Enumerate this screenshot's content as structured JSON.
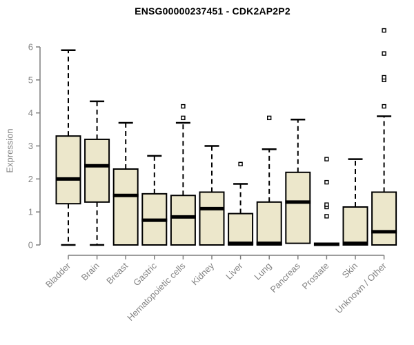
{
  "chart_data": {
    "type": "boxplot",
    "title": "ENSG00000237451 - CDK2AP2P2",
    "ylabel": "Expression",
    "xlabel": "",
    "ylim": [
      0,
      6
    ],
    "yticks": [
      0,
      1,
      2,
      3,
      4,
      5,
      6
    ],
    "grid": false,
    "legend": false,
    "categories": [
      "Bladder",
      "Brain",
      "Breast",
      "Gastric",
      "Hematopoietic cells",
      "Kidney",
      "Liver",
      "Lung",
      "Pancreas",
      "Prostate",
      "Skin",
      "Unknown / Other"
    ],
    "boxes": [
      {
        "label": "Bladder",
        "whislo": 0,
        "q1": 1.25,
        "med": 2.0,
        "q3": 3.3,
        "whishi": 5.9,
        "outliers": []
      },
      {
        "label": "Brain",
        "whislo": 0,
        "q1": 1.3,
        "med": 2.4,
        "q3": 3.2,
        "whishi": 4.35,
        "outliers": []
      },
      {
        "label": "Breast",
        "whislo": 0,
        "q1": 0,
        "med": 1.5,
        "q3": 2.3,
        "whishi": 3.7,
        "outliers": []
      },
      {
        "label": "Gastric",
        "whislo": 0,
        "q1": 0,
        "med": 0.75,
        "q3": 1.55,
        "whishi": 2.7,
        "outliers": []
      },
      {
        "label": "Hematopoietic cells",
        "whislo": 0,
        "q1": 0,
        "med": 0.85,
        "q3": 1.5,
        "whishi": 3.7,
        "outliers": [
          3.85,
          4.2
        ]
      },
      {
        "label": "Kidney",
        "whislo": 0,
        "q1": 0,
        "med": 1.1,
        "q3": 1.6,
        "whishi": 3.0,
        "outliers": []
      },
      {
        "label": "Liver",
        "whislo": 0,
        "q1": 0,
        "med": 0.05,
        "q3": 0.95,
        "whishi": 1.85,
        "outliers": [
          2.45
        ]
      },
      {
        "label": "Lung",
        "whislo": 0,
        "q1": 0,
        "med": 0.05,
        "q3": 1.3,
        "whishi": 2.9,
        "outliers": [
          3.85
        ]
      },
      {
        "label": "Pancreas",
        "whislo": 0.05,
        "q1": 0.05,
        "med": 1.3,
        "q3": 2.2,
        "whishi": 3.8,
        "outliers": []
      },
      {
        "label": "Prostate",
        "whislo": 0,
        "q1": 0,
        "med": 0.02,
        "q3": 0.02,
        "whishi": 0.02,
        "outliers": [
          0.87,
          1.15,
          1.22,
          1.9,
          2.6
        ]
      },
      {
        "label": "Skin",
        "whislo": 0,
        "q1": 0,
        "med": 0.05,
        "q3": 1.15,
        "whishi": 2.6,
        "outliers": []
      },
      {
        "label": "Unknown / Other",
        "whislo": 0,
        "q1": 0,
        "med": 0.4,
        "q3": 1.6,
        "whishi": 3.9,
        "outliers": [
          4.2,
          5.0,
          5.08,
          5.8,
          6.5
        ]
      }
    ],
    "colors": {
      "box_fill": "#ece7cb",
      "box_border": "#000000",
      "median": "#000000",
      "whisker": "#000000",
      "outlier_fill": "#ffffff",
      "axis": "#7d7d7d",
      "tick_label": "#848484",
      "title": "#000000",
      "background": "#ffffff"
    }
  }
}
